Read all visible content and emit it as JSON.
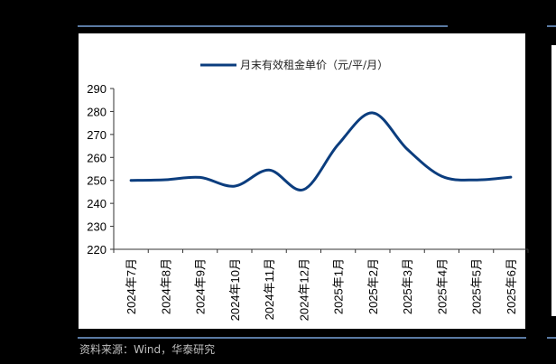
{
  "source": "资料来源：Wind，华泰研究",
  "chart_data": {
    "type": "line",
    "title": "",
    "legend": [
      "月末有效租金单价（元/平/月）"
    ],
    "legend_position": "top-center",
    "xlabel": "",
    "ylabel": "",
    "ylim": [
      220,
      290
    ],
    "yticks": [
      220,
      230,
      240,
      250,
      260,
      270,
      280,
      290
    ],
    "grid": false,
    "categories": [
      "2024年7月",
      "2024年8月",
      "2024年9月",
      "2024年10月",
      "2024年11月",
      "2024年12月",
      "2025年1月",
      "2025年2月",
      "2025年3月",
      "2025年4月",
      "2025年5月",
      "2025年6月"
    ],
    "series": [
      {
        "name": "月末有效租金单价（元/平/月）",
        "color": "#0b3d7e",
        "values": [
          250.0,
          250.3,
          251.3,
          247.5,
          254.5,
          246.0,
          265.6,
          279.4,
          263.6,
          251.8,
          250.2,
          251.4
        ]
      }
    ]
  }
}
